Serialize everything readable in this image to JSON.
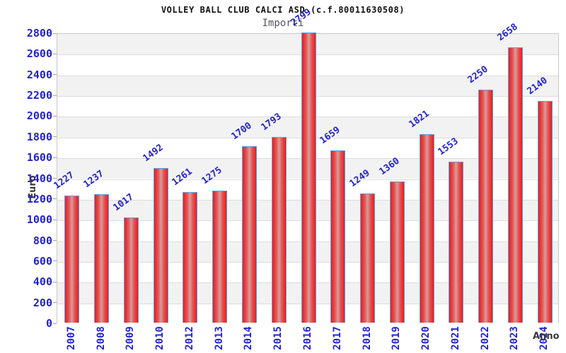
{
  "chart_data": {
    "type": "bar",
    "title": "VOLLEY BALL CLUB CALCI ASD (c.f.80011630508)",
    "subtitle": "Importi",
    "xlabel": "Anno",
    "ylabel": "Euro",
    "categories": [
      "2007",
      "2008",
      "2009",
      "2010",
      "2012",
      "2013",
      "2014",
      "2015",
      "2016",
      "2017",
      "2018",
      "2019",
      "2020",
      "2021",
      "2022",
      "2023",
      "2024"
    ],
    "values": [
      1227,
      1237,
      1017,
      1492,
      1261,
      1275,
      1700,
      1793,
      2799,
      1659,
      1249,
      1360,
      1821,
      1553,
      2250,
      2658,
      2140
    ],
    "ylim": [
      0,
      2800
    ],
    "ytick_step": 200,
    "grid": true,
    "legend": false,
    "layout": {
      "bands_alternating": true
    },
    "colors": {
      "axis_text": "#2323cb",
      "bar_border": "#54a4ee",
      "bar_edge_red": "#ec1c1c",
      "bar_center": "#d89c9c",
      "band_gray": "#f2f2f2",
      "gridline": "#dcdcdc",
      "plot_border": "#c8c8c8",
      "title_text": "#111111",
      "subtitle_text": "#56565e",
      "axis_label_text": "#3a3a3a",
      "background": "#ffffff"
    }
  }
}
